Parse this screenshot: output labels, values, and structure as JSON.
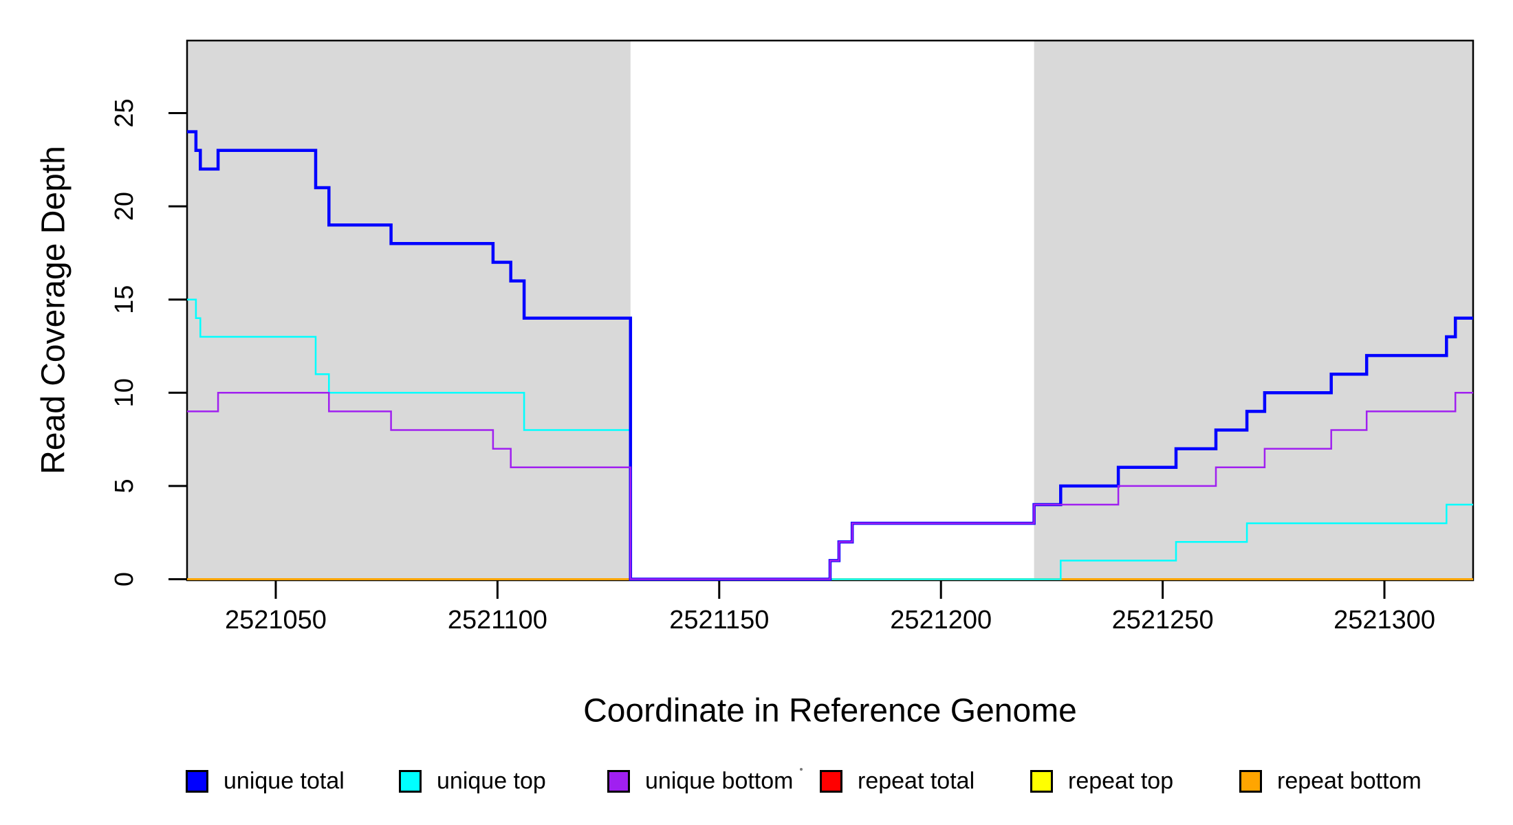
{
  "figure": {
    "y_axis_title": "Read Coverage Depth",
    "x_axis_title": "Coordinate in Reference Genome"
  },
  "chart_data": {
    "type": "line",
    "subtype": "step-post",
    "title": "",
    "xlabel": "Coordinate in Reference Genome",
    "ylabel": "Read Coverage Depth",
    "xlim": [
      2521030,
      2521320
    ],
    "ylim": [
      0,
      29
    ],
    "grid": false,
    "x_ticks": [
      2521050,
      2521100,
      2521150,
      2521200,
      2521250,
      2521300
    ],
    "x_tick_labels": [
      "2521050",
      "2521100",
      "2521150",
      "2521200",
      "2521250",
      "2521300"
    ],
    "y_ticks": [
      0,
      5,
      10,
      15,
      20,
      25
    ],
    "y_tick_labels": [
      "0",
      "5",
      "10",
      "15",
      "20",
      "25"
    ],
    "background_bands": [
      {
        "name": "left-gray-band",
        "from": 2521030,
        "to": 2521130,
        "color": "#d9d9d9"
      },
      {
        "name": "right-gray-band",
        "from": 2521221,
        "to": 2521320,
        "color": "#d9d9d9"
      }
    ],
    "series": [
      {
        "name": "unique total",
        "color": "#0000ff",
        "width": 4.5,
        "steps": [
          [
            2521030,
            24
          ],
          [
            2521032,
            23
          ],
          [
            2521033,
            22
          ],
          [
            2521037,
            23
          ],
          [
            2521059,
            21
          ],
          [
            2521062,
            19
          ],
          [
            2521076,
            18
          ],
          [
            2521099,
            17
          ],
          [
            2521103,
            16
          ],
          [
            2521106,
            14
          ],
          [
            2521130,
            0
          ],
          [
            2521175,
            1
          ],
          [
            2521177,
            2
          ],
          [
            2521180,
            3
          ],
          [
            2521221,
            4
          ],
          [
            2521227,
            5
          ],
          [
            2521240,
            6
          ],
          [
            2521253,
            7
          ],
          [
            2521262,
            8
          ],
          [
            2521269,
            9
          ],
          [
            2521273,
            10
          ],
          [
            2521288,
            11
          ],
          [
            2521296,
            12
          ],
          [
            2521314,
            13
          ],
          [
            2521316,
            14
          ]
        ],
        "end_x": 2521320
      },
      {
        "name": "unique top",
        "color": "#00ffff",
        "width": 2.5,
        "steps": [
          [
            2521030,
            15
          ],
          [
            2521032,
            14
          ],
          [
            2521033,
            13
          ],
          [
            2521059,
            11
          ],
          [
            2521062,
            10
          ],
          [
            2521106,
            8
          ],
          [
            2521130,
            0
          ],
          [
            2521227,
            1
          ],
          [
            2521253,
            2
          ],
          [
            2521269,
            3
          ],
          [
            2521314,
            4
          ]
        ],
        "end_x": 2521320
      },
      {
        "name": "unique bottom",
        "color": "#a020f0",
        "width": 2.5,
        "steps": [
          [
            2521030,
            9
          ],
          [
            2521037,
            10
          ],
          [
            2521062,
            9
          ],
          [
            2521076,
            8
          ],
          [
            2521099,
            7
          ],
          [
            2521103,
            6
          ],
          [
            2521130,
            0
          ],
          [
            2521175,
            1
          ],
          [
            2521177,
            2
          ],
          [
            2521180,
            3
          ],
          [
            2521221,
            4
          ],
          [
            2521240,
            5
          ],
          [
            2521262,
            6
          ],
          [
            2521273,
            7
          ],
          [
            2521288,
            8
          ],
          [
            2521296,
            9
          ],
          [
            2521316,
            10
          ]
        ],
        "end_x": 2521320
      },
      {
        "name": "repeat total",
        "color": "#ff0000",
        "width": 3,
        "steps": [
          [
            2521030,
            0
          ]
        ],
        "end_x": 2521320
      },
      {
        "name": "repeat top",
        "color": "#ffff00",
        "width": 3,
        "steps": [
          [
            2521030,
            0
          ]
        ],
        "end_x": 2521320
      },
      {
        "name": "repeat bottom",
        "color": "#ffa500",
        "width": 3,
        "steps": [
          [
            2521030,
            0
          ]
        ],
        "end_x": 2521320
      }
    ],
    "legend": {
      "position": "bottom",
      "items": [
        {
          "label": "unique total",
          "color": "#0000ff"
        },
        {
          "label": "unique top",
          "color": "#00ffff"
        },
        {
          "label": "unique bottom",
          "color": "#a020f0"
        },
        {
          "label": "repeat total",
          "color": "#ff0000"
        },
        {
          "label": "repeat top",
          "color": "#ffff00"
        },
        {
          "label": "repeat bottom",
          "color": "#ffa500"
        }
      ]
    }
  }
}
